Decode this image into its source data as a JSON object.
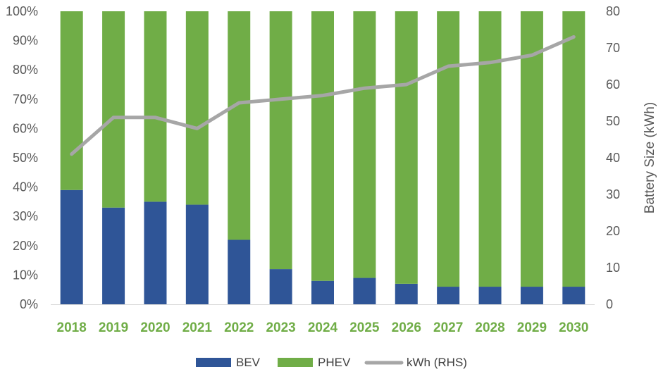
{
  "chart_data": {
    "type": "bar",
    "subtype": "stacked-100-percent-with-line",
    "categories": [
      "2018",
      "2019",
      "2020",
      "2021",
      "2022",
      "2023",
      "2024",
      "2025",
      "2026",
      "2027",
      "2028",
      "2029",
      "2030"
    ],
    "series": [
      {
        "name": "BEV",
        "type": "bar",
        "axis": "left",
        "color": "#2F5597",
        "values": [
          39,
          33,
          35,
          34,
          22,
          12,
          8,
          9,
          7,
          6,
          6,
          6,
          6
        ]
      },
      {
        "name": "PHEV",
        "type": "bar",
        "axis": "left",
        "color": "#70AD47",
        "values": [
          61,
          67,
          65,
          66,
          78,
          88,
          92,
          91,
          93,
          94,
          94,
          94,
          94
        ]
      },
      {
        "name": "kWh (RHS)",
        "type": "line",
        "axis": "right",
        "color": "#A6A6A6",
        "values": [
          41,
          51,
          51,
          48,
          55,
          56,
          57,
          59,
          60,
          65,
          66,
          68,
          73
        ]
      }
    ],
    "y_left": {
      "ylim": [
        0,
        100
      ],
      "ticks": [
        0,
        10,
        20,
        30,
        40,
        50,
        60,
        70,
        80,
        90,
        100
      ],
      "tick_labels": [
        "0%",
        "10%",
        "20%",
        "30%",
        "40%",
        "50%",
        "60%",
        "70%",
        "80%",
        "90%",
        "100%"
      ]
    },
    "y_right": {
      "ylim": [
        0,
        80
      ],
      "ticks": [
        0,
        10,
        20,
        30,
        40,
        50,
        60,
        70,
        80
      ],
      "tick_labels": [
        "0",
        "10",
        "20",
        "30",
        "40",
        "50",
        "60",
        "70",
        "80"
      ],
      "label": "Battery Size (kWh)"
    },
    "xlabel": "",
    "title": "",
    "grid": false,
    "legend": {
      "position": "bottom",
      "entries": [
        "BEV",
        "PHEV",
        "kWh (RHS)"
      ]
    }
  }
}
